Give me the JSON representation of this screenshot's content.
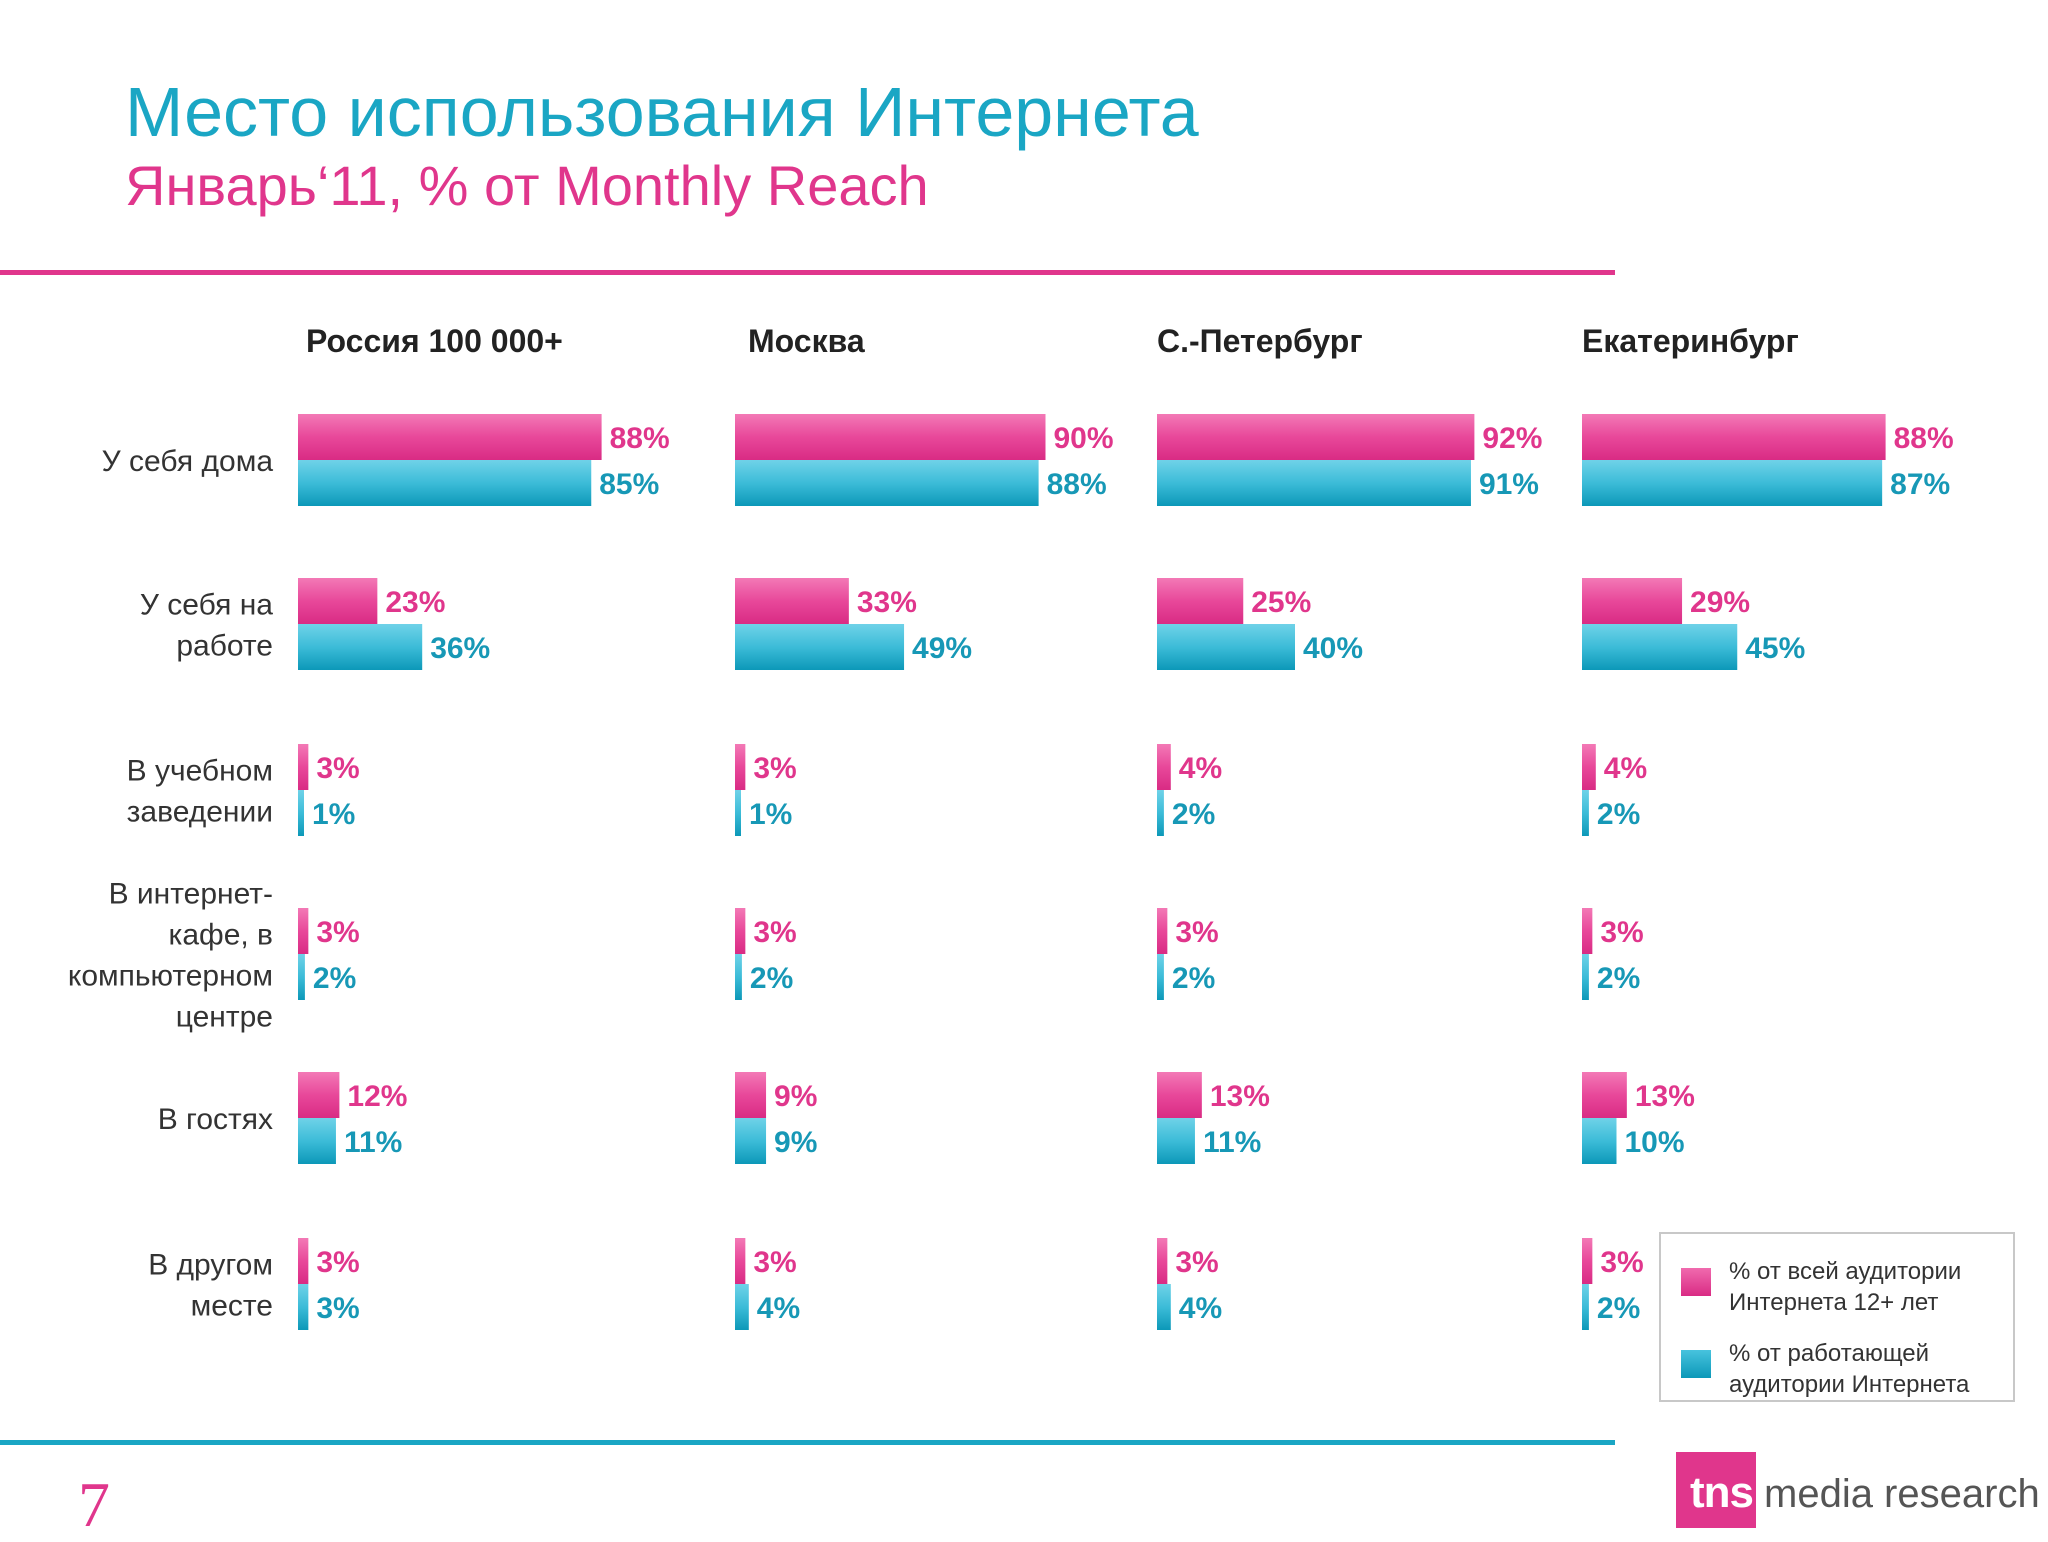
{
  "header": {
    "title": "Место использования Интернета",
    "subtitle": "Январь‘11, % от Monthly Reach"
  },
  "chart_data": {
    "type": "bar",
    "orientation": "horizontal",
    "panels": [
      "Россия 100 000+",
      "Москва",
      "С.-Петербург",
      "Екатеринбург"
    ],
    "categories": [
      "У себя дома",
      "У себя на работе",
      "В учебном заведении",
      "В интернет-кафе, в компьютерном центре",
      "В гостях",
      "В другом месте"
    ],
    "category_lines": [
      [
        "У себя дома"
      ],
      [
        "У себя на",
        "работе"
      ],
      [
        "В учебном",
        "заведении"
      ],
      [
        "В интернет-",
        "кафе, в",
        "компьютерном",
        "центре"
      ],
      [
        "В гостях"
      ],
      [
        "В другом",
        "месте"
      ]
    ],
    "series": [
      {
        "name": "% от всей аудитории Интернета 12+ лет",
        "values": [
          [
            88,
            23,
            3,
            3,
            12,
            3
          ],
          [
            90,
            33,
            3,
            3,
            9,
            3
          ],
          [
            92,
            25,
            4,
            3,
            13,
            3
          ],
          [
            88,
            29,
            4,
            3,
            13,
            3
          ]
        ]
      },
      {
        "name": "% от работающей аудитории Интернета",
        "values": [
          [
            85,
            36,
            1,
            2,
            11,
            3
          ],
          [
            88,
            49,
            1,
            2,
            9,
            4
          ],
          [
            91,
            40,
            2,
            2,
            11,
            4
          ],
          [
            87,
            45,
            2,
            2,
            10,
            2
          ]
        ]
      }
    ],
    "value_suffix": "%",
    "xlim": [
      0,
      100
    ],
    "grid": false,
    "legend_position": "bottom-right"
  },
  "legend": {
    "items": [
      "% от всей аудитории Интернета 12+ лет",
      "% от работающей аудитории Интернета"
    ]
  },
  "footer": {
    "page_number": "7",
    "logo_tns": "tns",
    "logo_text": "media research"
  },
  "colors": {
    "pink": "#e0368c",
    "teal": "#1aa6c4",
    "pink_label": "#e0368c",
    "teal_label": "#1798b6"
  }
}
